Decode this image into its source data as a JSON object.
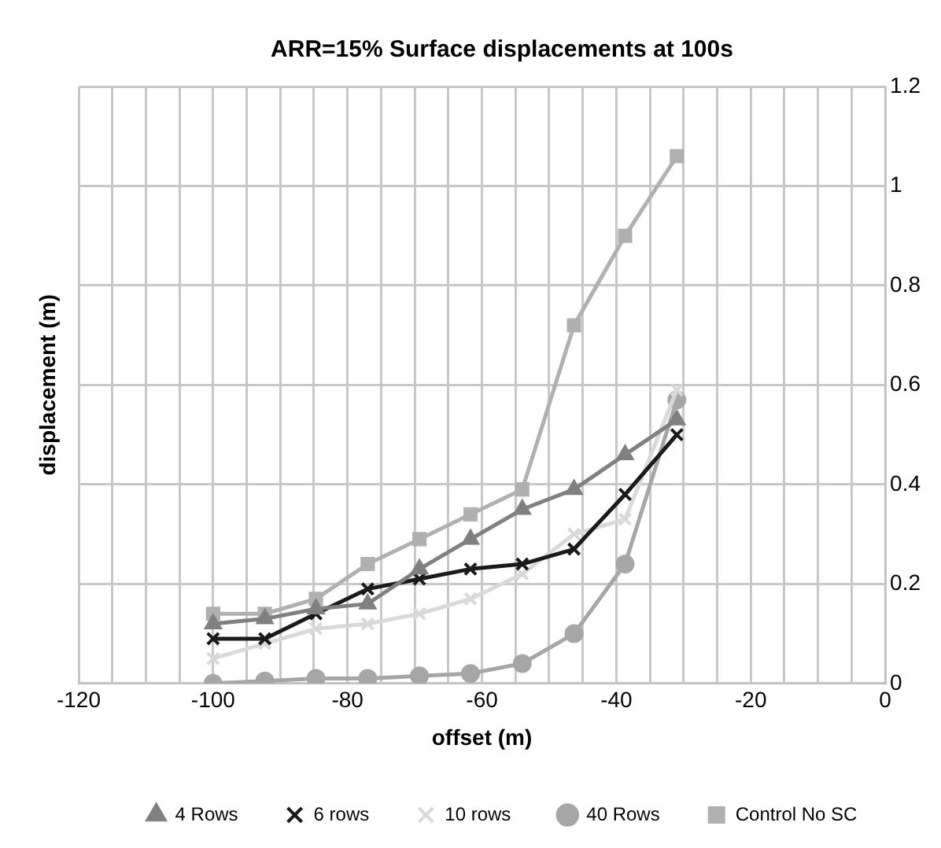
{
  "chart_data": {
    "type": "line",
    "title": "ARR=15% Surface displacements at 100s",
    "xlabel": "offset (m)",
    "ylabel": "displacement (m)",
    "x": [
      -100,
      -92.3,
      -84.7,
      -77,
      -69.3,
      -61.7,
      -54,
      -46.3,
      -38.7,
      -31
    ],
    "series": [
      {
        "name": "4 Rows",
        "color": "#808080",
        "marker": "triangle",
        "values": [
          0.12,
          0.13,
          0.15,
          0.16,
          0.23,
          0.29,
          0.35,
          0.39,
          0.46,
          0.53
        ]
      },
      {
        "name": "6 rows",
        "color": "#1a1a1a",
        "marker": "cross",
        "values": [
          0.09,
          0.09,
          0.14,
          0.19,
          0.21,
          0.23,
          0.24,
          0.27,
          0.38,
          0.5
        ]
      },
      {
        "name": "10 rows",
        "color": "#d9d9d9",
        "marker": "cross",
        "values": [
          0.05,
          0.08,
          0.11,
          0.12,
          0.14,
          0.17,
          0.22,
          0.3,
          0.33,
          0.59
        ]
      },
      {
        "name": "40 Rows",
        "color": "#a6a6a6",
        "marker": "circle",
        "values": [
          0,
          0.005,
          0.01,
          0.01,
          0.015,
          0.02,
          0.04,
          0.1,
          0.24,
          0.57
        ]
      },
      {
        "name": "Control No SC",
        "color": "#b0b0b0",
        "marker": "square",
        "values": [
          0.14,
          0.14,
          0.17,
          0.24,
          0.29,
          0.34,
          0.39,
          0.72,
          0.9,
          1.06
        ]
      }
    ],
    "xlim": [
      -120,
      0
    ],
    "xticks": [
      -120,
      {
        "value": -115,
        "label": null
      },
      {
        "value": -110,
        "label": null
      },
      {
        "value": -105,
        "label": null
      },
      -100,
      {
        "value": -95,
        "label": null
      },
      {
        "value": -90,
        "label": null
      },
      {
        "value": -85,
        "label": null
      },
      -80,
      {
        "value": -75,
        "label": null
      },
      {
        "value": -70,
        "label": null
      },
      {
        "value": -65,
        "label": null
      },
      -60,
      {
        "value": -55,
        "label": null
      },
      {
        "value": -50,
        "label": null
      },
      {
        "value": -45,
        "label": null
      },
      -40,
      {
        "value": -35,
        "label": null
      },
      {
        "value": -30,
        "label": null
      },
      {
        "value": -25,
        "label": null
      },
      -20,
      {
        "value": -15,
        "label": null
      },
      {
        "value": -10,
        "label": null
      },
      {
        "value": -5,
        "label": null
      },
      0
    ],
    "ylim": [
      0,
      1.2
    ],
    "yticks": [
      0,
      0.2,
      0.4,
      0.6,
      0.8,
      1,
      1.2
    ],
    "grid": true,
    "legend": "bottom",
    "line_style": "solid"
  }
}
